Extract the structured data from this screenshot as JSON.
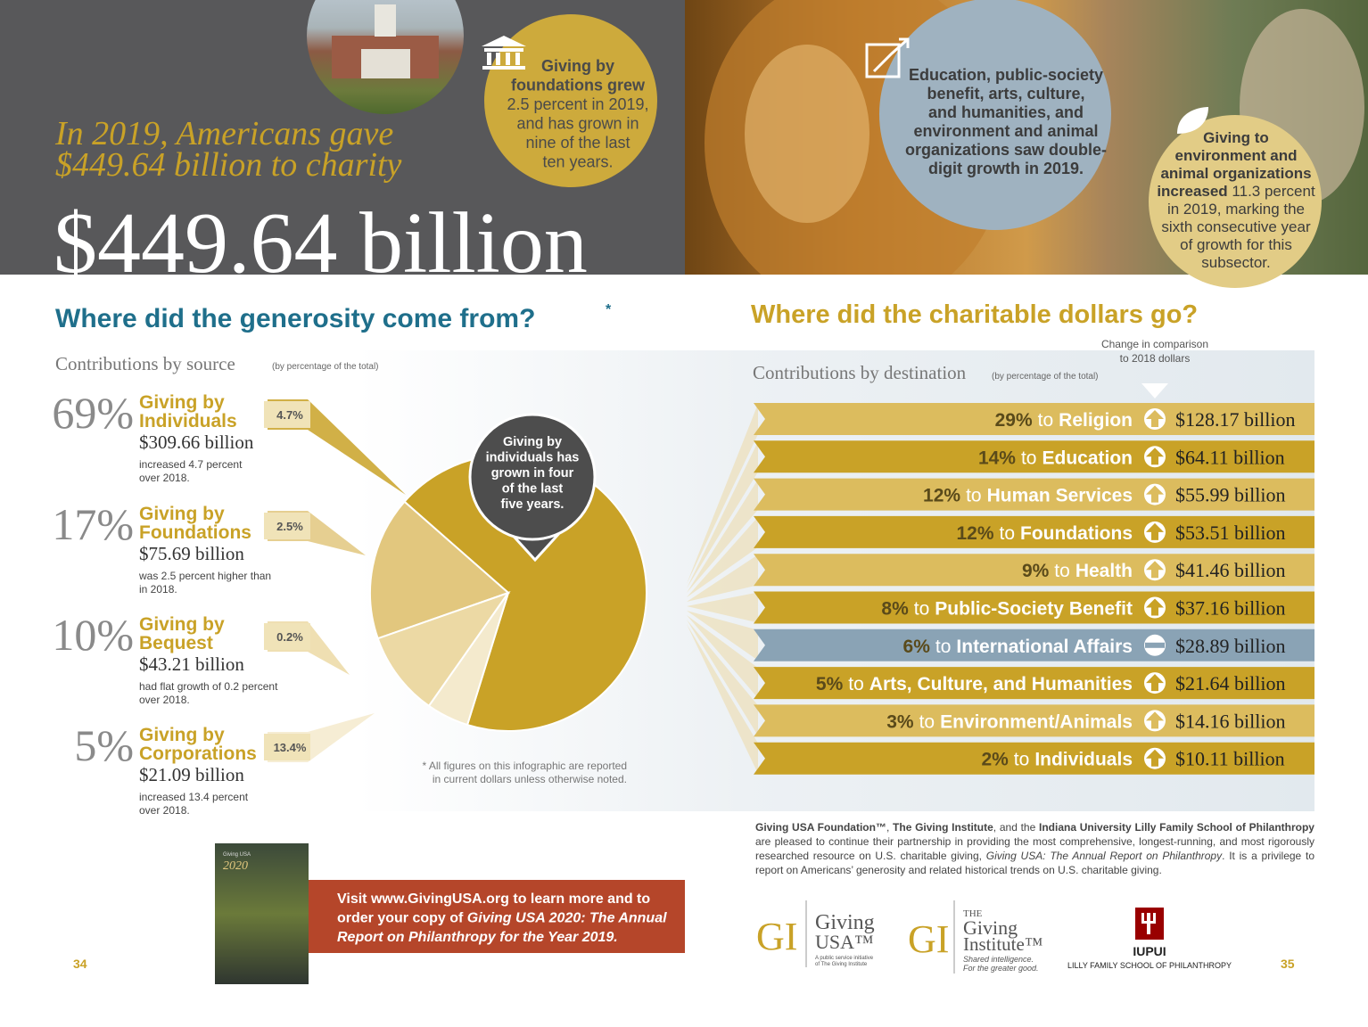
{
  "header": {
    "headline_lines": [
      "In 2019, Americans gave",
      "$449.64 billion to charity"
    ],
    "total": "$449.64 billion",
    "foundations_callout": [
      [
        {
          "text": "Giving by",
          "bold": true
        }
      ],
      [
        {
          "text": "foundations grew",
          "bold": true
        }
      ],
      [
        {
          "text": "2.5 percent in 2019,"
        }
      ],
      [
        {
          "text": "and has grown in"
        }
      ],
      [
        {
          "text": "nine of the last"
        }
      ],
      [
        {
          "text": "ten years."
        }
      ]
    ],
    "subsectors_callout": [
      [
        {
          "text": "Education, public-society",
          "bold": true
        }
      ],
      [
        {
          "text": "benefit, arts, culture,",
          "bold": true
        }
      ],
      [
        {
          "text": "and humanities, and",
          "bold": true
        }
      ],
      [
        {
          "text": "environment and animal",
          "bold": true
        }
      ],
      [
        {
          "text": "organizations saw double-",
          "bold": true
        }
      ],
      [
        {
          "text": "digit growth in 2019.",
          "bold": true
        }
      ]
    ],
    "environment_callout": [
      [
        {
          "text": "Giving to",
          "bold": true
        }
      ],
      [
        {
          "text": "environment and",
          "bold": true
        }
      ],
      [
        {
          "text": "animal organizations",
          "bold": true
        }
      ],
      [
        {
          "text": "increased",
          "bold": true
        },
        {
          "text": " 11.3 percent"
        }
      ],
      [
        {
          "text": "in 2019, marking the"
        }
      ],
      [
        {
          "text": "sixth consecutive year"
        }
      ],
      [
        {
          "text": "of growth for this"
        }
      ],
      [
        {
          "text": "subsector."
        }
      ]
    ]
  },
  "sources": {
    "heading": "Where did the generosity come from?",
    "asterisk": "*",
    "subheading": "Contributions by source",
    "subheading_note": "(by percentage of the total)",
    "items": [
      {
        "percent": 69,
        "percent_label": "69%",
        "title_lines": [
          "Giving by",
          "Individuals"
        ],
        "amount": "$309.66 billion",
        "note_lines": [
          "increased 4.7 percent",
          "over 2018."
        ],
        "change": "4.7%",
        "color": "#c9a227"
      },
      {
        "percent": 17,
        "percent_label": "17%",
        "title_lines": [
          "Giving by",
          "Foundations"
        ],
        "amount": "$75.69 billion",
        "note_lines": [
          "was 2.5 percent higher than",
          "in 2018."
        ],
        "change": "2.5%",
        "color": "#e2c77e"
      },
      {
        "percent": 10,
        "percent_label": "10%",
        "title_lines": [
          "Giving by",
          "Bequest"
        ],
        "amount": "$43.21 billion",
        "note_lines": [
          "had flat growth of 0.2 percent",
          "over 2018."
        ],
        "change": "0.2%",
        "color": "#ecd9a4"
      },
      {
        "percent": 5,
        "percent_label": "5%",
        "title_lines": [
          "Giving by",
          "Corporations"
        ],
        "amount": "$21.09 billion",
        "note_lines": [
          "increased 13.4 percent",
          "over 2018."
        ],
        "change": "13.4%",
        "color": "#f4eacd"
      }
    ],
    "callout_lines": [
      "Giving by",
      "individuals has",
      "grown in four",
      "of the last",
      "five years."
    ],
    "footnote_lines": [
      "* All figures on this infographic are reported",
      "in current dollars unless otherwise noted."
    ]
  },
  "destinations": {
    "heading": "Where did the charitable dollars go?",
    "change_note_lines": [
      "Change in comparison",
      "to 2018 dollars"
    ],
    "subheading": "Contributions by destination",
    "subheading_note": "(by percentage of the total)",
    "connector": "to",
    "rows": [
      {
        "percent_label": "29%",
        "name": "Religion",
        "amount": "$128.17 billion",
        "color": "#dcbc5e",
        "trend": "up"
      },
      {
        "percent_label": "14%",
        "name": "Education",
        "amount": "$64.11 billion",
        "color": "#c9a227",
        "trend": "up"
      },
      {
        "percent_label": "12%",
        "name": "Human Services",
        "amount": "$55.99 billion",
        "color": "#dcbc5e",
        "trend": "up"
      },
      {
        "percent_label": "12%",
        "name": "Foundations",
        "amount": "$53.51 billion",
        "color": "#c9a227",
        "trend": "up"
      },
      {
        "percent_label": "9%",
        "name": "Health",
        "amount": "$41.46 billion",
        "color": "#dcbc5e",
        "trend": "up"
      },
      {
        "percent_label": "8%",
        "name": "Public-Society Benefit",
        "amount": "$37.16 billion",
        "color": "#c9a227",
        "trend": "up"
      },
      {
        "percent_label": "6%",
        "name": "International Affairs",
        "amount": "$28.89 billion",
        "color": "#8aa3b5",
        "trend": "flat"
      },
      {
        "percent_label": "5%",
        "name": "Arts, Culture, and Humanities",
        "amount": "$21.64 billion",
        "color": "#c9a227",
        "trend": "up"
      },
      {
        "percent_label": "3%",
        "name": "Environment/Animals",
        "amount": "$14.16 billion",
        "color": "#dcbc5e",
        "trend": "up"
      },
      {
        "percent_label": "2%",
        "name": "Individuals",
        "amount": "$10.11 billion",
        "color": "#c9a227",
        "trend": "up"
      }
    ]
  },
  "footer": {
    "paragraph": [
      {
        "text": "Giving USA Foundation™",
        "bold": true
      },
      {
        "text": ", "
      },
      {
        "text": "The Giving Institute",
        "bold": true
      },
      {
        "text": ", and the "
      },
      {
        "text": "Indiana University Lilly Family School of Philanthropy",
        "bold": true
      },
      {
        "text": " are pleased to continue their partnership in providing the most comprehensive, longest-running, and most rigorously researched resource on U.S. charitable giving, "
      },
      {
        "text": "Giving USA: The Annual Report on Philanthropy",
        "italic": true
      },
      {
        "text": ". It is a privilege to report on Americans’ generosity and related historical trends on U.S. charitable giving."
      }
    ],
    "book": {
      "title": "Giving USA",
      "year": "2020"
    },
    "promo_lines": [
      [
        {
          "text": "Visit www.GivingUSA.org to learn more and to"
        }
      ],
      [
        {
          "text": "order your copy of "
        },
        {
          "text": "Giving USA 2020: The Annual",
          "italic": true
        }
      ],
      [
        {
          "text": "Report on Philanthropy for the Year 2019.",
          "italic": true
        }
      ]
    ],
    "page_left": "34",
    "page_right": "35",
    "logos": {
      "monogram": "GI",
      "giving_usa": [
        "Giving",
        "USA™"
      ],
      "giving_usa_tagline": [
        "A public service initiative",
        "of The Giving Institute"
      ],
      "institute": [
        "THE",
        "Giving",
        "Institute™"
      ],
      "institute_tagline": [
        "Shared intelligence.",
        "For the greater good."
      ],
      "iupui": "IUPUI",
      "lilly": "LILLY FAMILY SCHOOL OF PHILANTHROPY"
    }
  }
}
